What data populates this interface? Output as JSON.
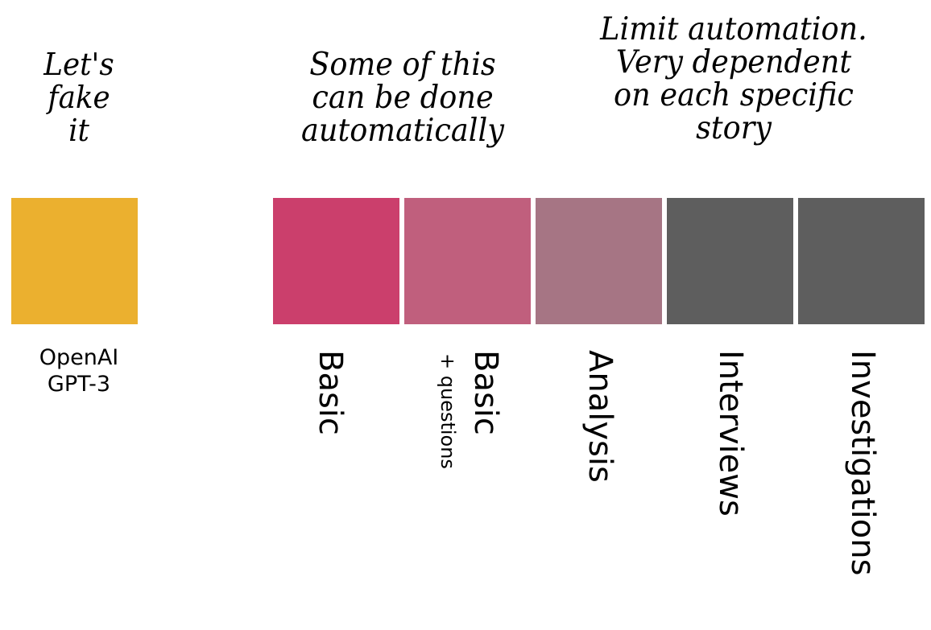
{
  "notes": {
    "fake": [
      "Let's",
      "fake",
      "it"
    ],
    "some": [
      "Some of this",
      "can be done",
      "automatically"
    ],
    "limit": [
      "Limit automation.",
      "Very dependent",
      "on each specific",
      "story"
    ]
  },
  "blocks": [
    {
      "id": "openai",
      "color": "#EBB02F"
    },
    {
      "id": "basic",
      "color": "#CB3F6C"
    },
    {
      "id": "basic-questions",
      "color": "#C05F7D"
    },
    {
      "id": "analysis",
      "color": "#A67584"
    },
    {
      "id": "interviews",
      "color": "#5E5E5E"
    },
    {
      "id": "investigations",
      "color": "#5E5E5E"
    }
  ],
  "labels": {
    "openai_line1": "OpenAI",
    "openai_line2": "GPT-3",
    "basic": "Basic",
    "basic2": "Basic",
    "basic2_sub": "+ questions",
    "analysis": "Analysis",
    "interviews": "Interviews",
    "investigations": "Investigations"
  }
}
